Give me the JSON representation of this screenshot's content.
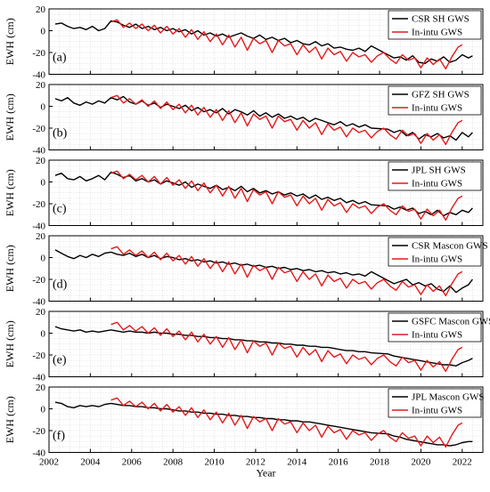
{
  "chart_data": {
    "type": "line",
    "xlabel": "Year",
    "ylabel": "EWH (cm)",
    "xlim": [
      2002,
      2023
    ],
    "ylim": [
      -40,
      20
    ],
    "x_ticks": [
      2002,
      2004,
      2006,
      2008,
      2010,
      2012,
      2014,
      2016,
      2018,
      2020,
      2022
    ],
    "y_ticks": [
      20,
      0,
      -20,
      -40
    ],
    "grid": true,
    "legend_position": "top-right",
    "colors": {
      "grace": "#000000",
      "insitu": "#e41a1c"
    },
    "insitu_series": {
      "name": "In-intu GWS",
      "x": [
        2005.0,
        2005.3,
        2005.6,
        2005.9,
        2006.2,
        2006.5,
        2006.8,
        2007.1,
        2007.4,
        2007.7,
        2008.0,
        2008.3,
        2008.6,
        2008.9,
        2009.2,
        2009.5,
        2009.8,
        2010.1,
        2010.4,
        2010.7,
        2011.0,
        2011.3,
        2011.6,
        2011.9,
        2012.2,
        2012.5,
        2012.8,
        2013.1,
        2013.4,
        2013.7,
        2014.0,
        2014.3,
        2014.6,
        2014.9,
        2015.2,
        2015.5,
        2015.8,
        2016.1,
        2016.4,
        2016.7,
        2017.0,
        2017.3,
        2017.6,
        2017.9,
        2018.2,
        2018.5,
        2018.8,
        2019.1,
        2019.4,
        2019.7,
        2020.0,
        2020.3,
        2020.6,
        2020.9,
        2021.2,
        2021.5,
        2021.8,
        2022.0
      ],
      "y": [
        8,
        10,
        3,
        7,
        2,
        6,
        0,
        5,
        -2,
        4,
        -3,
        2,
        -6,
        1,
        -8,
        -1,
        -10,
        -3,
        -13,
        -4,
        -15,
        -6,
        -18,
        -7,
        -12,
        -9,
        -20,
        -9,
        -14,
        -12,
        -22,
        -13,
        -20,
        -15,
        -26,
        -16,
        -22,
        -19,
        -28,
        -20,
        -24,
        -22,
        -29,
        -23,
        -20,
        -26,
        -30,
        -22,
        -27,
        -25,
        -34,
        -25,
        -31,
        -26,
        -35,
        -24,
        -15,
        -13
      ]
    },
    "panels": [
      {
        "tag": "(a)",
        "legend": [
          "CSR SH GWS",
          "In-intu GWS"
        ],
        "grace": {
          "name": "CSR SH GWS",
          "x": [
            2002.3,
            2002.6,
            2002.9,
            2003.2,
            2003.5,
            2003.8,
            2004.1,
            2004.4,
            2004.7,
            2005.0,
            2005.3,
            2005.6,
            2005.9,
            2006.2,
            2006.5,
            2006.8,
            2007.1,
            2007.4,
            2007.7,
            2008.0,
            2008.3,
            2008.6,
            2008.9,
            2009.2,
            2009.5,
            2009.8,
            2010.1,
            2010.4,
            2010.7,
            2011.0,
            2011.3,
            2011.6,
            2011.9,
            2012.2,
            2012.5,
            2012.8,
            2013.1,
            2013.4,
            2013.7,
            2014.0,
            2014.3,
            2014.6,
            2014.9,
            2015.2,
            2015.5,
            2015.8,
            2016.1,
            2016.4,
            2016.7,
            2017.0,
            2017.3,
            2017.6,
            2018.4,
            2018.7,
            2019.0,
            2019.3,
            2019.6,
            2019.9,
            2020.2,
            2020.5,
            2020.8,
            2021.1,
            2021.4,
            2021.7,
            2022.0,
            2022.3,
            2022.5
          ],
          "y": [
            6,
            7,
            4,
            2,
            3,
            1,
            4,
            0,
            2,
            9,
            8,
            5,
            3,
            6,
            2,
            4,
            1,
            3,
            0,
            2,
            -1,
            1,
            -3,
            0,
            -4,
            -2,
            -5,
            -3,
            -6,
            -4,
            -2,
            -5,
            -7,
            -4,
            -8,
            -6,
            -9,
            -7,
            -11,
            -9,
            -12,
            -13,
            -10,
            -14,
            -12,
            -16,
            -15,
            -17,
            -18,
            -16,
            -19,
            -14,
            -22,
            -25,
            -24,
            -27,
            -23,
            -29,
            -30,
            -26,
            -28,
            -24,
            -29,
            -27,
            -22,
            -25,
            -23
          ]
        }
      },
      {
        "tag": "(b)",
        "legend": [
          "GFZ SH GWS",
          "In-intu GWS"
        ],
        "grace": {
          "name": "GFZ SH GWS",
          "x": [
            2002.3,
            2002.6,
            2002.9,
            2003.2,
            2003.5,
            2003.8,
            2004.1,
            2004.4,
            2004.7,
            2005.0,
            2005.3,
            2005.6,
            2005.9,
            2006.2,
            2006.5,
            2006.8,
            2007.1,
            2007.4,
            2007.7,
            2008.0,
            2008.3,
            2008.6,
            2008.9,
            2009.2,
            2009.5,
            2009.8,
            2010.1,
            2010.4,
            2010.7,
            2011.0,
            2011.3,
            2011.6,
            2011.9,
            2012.2,
            2012.5,
            2012.8,
            2013.1,
            2013.4,
            2013.7,
            2014.0,
            2014.3,
            2014.6,
            2014.9,
            2015.2,
            2015.5,
            2015.8,
            2016.1,
            2016.4,
            2016.7,
            2017.0,
            2017.3,
            2017.6,
            2018.4,
            2018.7,
            2019.0,
            2019.3,
            2019.6,
            2019.9,
            2020.2,
            2020.5,
            2020.8,
            2021.1,
            2021.4,
            2021.7,
            2022.0,
            2022.3,
            2022.5
          ],
          "y": [
            7,
            5,
            8,
            3,
            1,
            4,
            2,
            5,
            3,
            8,
            6,
            9,
            4,
            2,
            5,
            1,
            3,
            -1,
            2,
            0,
            -2,
            1,
            -4,
            -1,
            -5,
            -3,
            -6,
            -2,
            -7,
            -3,
            -5,
            -8,
            -4,
            -9,
            -6,
            -10,
            -7,
            -11,
            -9,
            -12,
            -10,
            -14,
            -11,
            -13,
            -15,
            -17,
            -14,
            -18,
            -16,
            -19,
            -17,
            -20,
            -21,
            -24,
            -22,
            -27,
            -24,
            -30,
            -26,
            -28,
            -25,
            -29,
            -27,
            -31,
            -24,
            -28,
            -24
          ]
        }
      },
      {
        "tag": "(c)",
        "legend": [
          "JPL SH GWS",
          "In-intu GWS"
        ],
        "grace": {
          "name": "JPL SH GWS",
          "x": [
            2002.3,
            2002.6,
            2002.9,
            2003.2,
            2003.5,
            2003.8,
            2004.1,
            2004.4,
            2004.7,
            2005.0,
            2005.3,
            2005.6,
            2005.9,
            2006.2,
            2006.5,
            2006.8,
            2007.1,
            2007.4,
            2007.7,
            2008.0,
            2008.3,
            2008.6,
            2008.9,
            2009.2,
            2009.5,
            2009.8,
            2010.1,
            2010.4,
            2010.7,
            2011.0,
            2011.3,
            2011.6,
            2011.9,
            2012.2,
            2012.5,
            2012.8,
            2013.1,
            2013.4,
            2013.7,
            2014.0,
            2014.3,
            2014.6,
            2014.9,
            2015.2,
            2015.5,
            2015.8,
            2016.1,
            2016.4,
            2016.7,
            2017.0,
            2017.3,
            2017.6,
            2018.4,
            2018.7,
            2019.0,
            2019.3,
            2019.6,
            2019.9,
            2020.2,
            2020.5,
            2020.8,
            2021.1,
            2021.4,
            2021.7,
            2022.0,
            2022.3,
            2022.5
          ],
          "y": [
            6,
            8,
            3,
            2,
            5,
            1,
            3,
            6,
            2,
            9,
            7,
            4,
            6,
            1,
            3,
            0,
            2,
            -2,
            1,
            -1,
            -3,
            0,
            -5,
            -2,
            -4,
            -6,
            -3,
            -7,
            -5,
            -8,
            -4,
            -9,
            -6,
            -10,
            -8,
            -11,
            -9,
            -12,
            -10,
            -13,
            -11,
            -15,
            -12,
            -16,
            -14,
            -17,
            -15,
            -19,
            -17,
            -20,
            -18,
            -21,
            -22,
            -25,
            -23,
            -26,
            -24,
            -29,
            -27,
            -30,
            -26,
            -31,
            -28,
            -30,
            -26,
            -28,
            -24
          ]
        }
      },
      {
        "tag": "(d)",
        "legend": [
          "CSR Mascon GWS",
          "In-intu GWS"
        ],
        "grace": {
          "name": "CSR Mascon GWS",
          "x": [
            2002.3,
            2002.6,
            2002.9,
            2003.2,
            2003.5,
            2003.8,
            2004.1,
            2004.4,
            2004.7,
            2005.0,
            2005.3,
            2005.6,
            2005.9,
            2006.2,
            2006.5,
            2006.8,
            2007.1,
            2007.4,
            2007.7,
            2008.0,
            2008.3,
            2008.6,
            2008.9,
            2009.2,
            2009.5,
            2009.8,
            2010.1,
            2010.4,
            2010.7,
            2011.0,
            2011.3,
            2011.6,
            2011.9,
            2012.2,
            2012.5,
            2012.8,
            2013.1,
            2013.4,
            2013.7,
            2014.0,
            2014.3,
            2014.6,
            2014.9,
            2015.2,
            2015.5,
            2015.8,
            2016.1,
            2016.4,
            2016.7,
            2017.0,
            2017.3,
            2017.6,
            2018.4,
            2018.7,
            2019.0,
            2019.3,
            2019.6,
            2019.9,
            2020.2,
            2020.5,
            2020.8,
            2021.1,
            2021.4,
            2021.7,
            2022.0,
            2022.3,
            2022.5
          ],
          "y": [
            7,
            4,
            1,
            -1,
            2,
            0,
            3,
            1,
            4,
            5,
            3,
            2,
            4,
            1,
            3,
            0,
            2,
            -1,
            1,
            0,
            -2,
            -1,
            -3,
            -2,
            -4,
            -3,
            -5,
            -4,
            -6,
            -5,
            -7,
            -6,
            -8,
            -7,
            -9,
            -8,
            -10,
            -9,
            -11,
            -10,
            -12,
            -11,
            -13,
            -12,
            -14,
            -13,
            -15,
            -14,
            -16,
            -15,
            -17,
            -13,
            -21,
            -24,
            -22,
            -20,
            -25,
            -23,
            -26,
            -24,
            -29,
            -31,
            -26,
            -32,
            -28,
            -25,
            -20
          ]
        }
      },
      {
        "tag": "(e)",
        "legend": [
          "GSFC Mascon GWS",
          "In-intu GWS"
        ],
        "grace": {
          "name": "GSFC Mascon GWS",
          "x": [
            2002.3,
            2002.6,
            2002.9,
            2003.2,
            2003.5,
            2003.8,
            2004.1,
            2004.4,
            2004.7,
            2005.0,
            2005.3,
            2005.6,
            2005.9,
            2006.2,
            2006.5,
            2006.8,
            2007.1,
            2007.4,
            2007.7,
            2008.0,
            2008.3,
            2008.6,
            2008.9,
            2009.2,
            2009.5,
            2009.8,
            2010.1,
            2010.4,
            2010.7,
            2011.0,
            2011.3,
            2011.6,
            2011.9,
            2012.2,
            2012.5,
            2012.8,
            2013.1,
            2013.4,
            2013.7,
            2014.0,
            2014.3,
            2014.6,
            2014.9,
            2015.2,
            2015.5,
            2015.8,
            2016.1,
            2016.4,
            2016.7,
            2017.0,
            2017.3,
            2017.6,
            2018.4,
            2018.7,
            2019.0,
            2019.3,
            2019.6,
            2019.9,
            2020.2,
            2020.5,
            2020.8,
            2021.1,
            2021.4,
            2021.7,
            2022.0,
            2022.3,
            2022.5
          ],
          "y": [
            6,
            4,
            3,
            2,
            3,
            1,
            2,
            1,
            2,
            3,
            2,
            1,
            2,
            1,
            1,
            0,
            1,
            0,
            0,
            -1,
            -1,
            -2,
            -2,
            -3,
            -3,
            -4,
            -4,
            -5,
            -5,
            -6,
            -6,
            -7,
            -7,
            -8,
            -8,
            -9,
            -9,
            -10,
            -10,
            -11,
            -11,
            -12,
            -12,
            -13,
            -13,
            -14,
            -15,
            -16,
            -16,
            -17,
            -17,
            -18,
            -19,
            -21,
            -22,
            -23,
            -24,
            -25,
            -26,
            -27,
            -28,
            -29,
            -29,
            -30,
            -27,
            -25,
            -23
          ]
        }
      },
      {
        "tag": "(f)",
        "legend": [
          "JPL Mascon GWS",
          "In-intu GWS"
        ],
        "grace": {
          "name": "JPL Mascon GWS",
          "x": [
            2002.3,
            2002.6,
            2002.9,
            2003.2,
            2003.5,
            2003.8,
            2004.1,
            2004.4,
            2004.7,
            2005.0,
            2005.3,
            2005.6,
            2005.9,
            2006.2,
            2006.5,
            2006.8,
            2007.1,
            2007.4,
            2007.7,
            2008.0,
            2008.3,
            2008.6,
            2008.9,
            2009.2,
            2009.5,
            2009.8,
            2010.1,
            2010.4,
            2010.7,
            2011.0,
            2011.3,
            2011.6,
            2011.9,
            2012.2,
            2012.5,
            2012.8,
            2013.1,
            2013.4,
            2013.7,
            2014.0,
            2014.3,
            2014.6,
            2014.9,
            2015.2,
            2015.5,
            2015.8,
            2016.1,
            2016.4,
            2016.7,
            2017.0,
            2017.3,
            2017.6,
            2018.4,
            2018.7,
            2019.0,
            2019.3,
            2019.6,
            2019.9,
            2020.2,
            2020.5,
            2020.8,
            2021.1,
            2021.4,
            2021.7,
            2022.0,
            2022.3,
            2022.5
          ],
          "y": [
            6,
            5,
            2,
            1,
            3,
            2,
            3,
            2,
            4,
            5,
            4,
            3,
            3,
            2,
            2,
            1,
            1,
            0,
            0,
            -1,
            -2,
            -2,
            -3,
            -3,
            -4,
            -4,
            -5,
            -5,
            -6,
            -6,
            -7,
            -7,
            -8,
            -8,
            -9,
            -9,
            -10,
            -10,
            -11,
            -11,
            -12,
            -12,
            -13,
            -14,
            -15,
            -16,
            -17,
            -18,
            -19,
            -20,
            -21,
            -22,
            -23,
            -25,
            -26,
            -28,
            -29,
            -30,
            -31,
            -32,
            -33,
            -33,
            -34,
            -33,
            -31,
            -30,
            -30
          ]
        }
      }
    ]
  }
}
